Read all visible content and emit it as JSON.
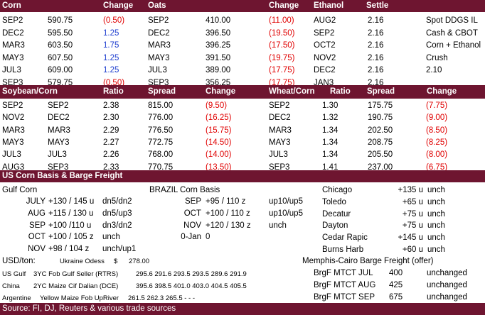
{
  "colors": {
    "header_bg": "#6e1530",
    "negative": "#e00000",
    "positive": "#1f3fcf"
  },
  "corn": {
    "headers": [
      "Corn",
      "Change",
      "Oats",
      "Change",
      "Ethanol",
      "Settle"
    ],
    "rows": [
      {
        "month": "SEP2",
        "price": "590.75",
        "change": "(0.50)",
        "oats_month": "SEP2",
        "oats_price": "410.00",
        "oats_change": "(11.00)",
        "eth_month": "AUG2",
        "eth_settle": "2.16",
        "note": "Spot DDGS IL"
      },
      {
        "month": "DEC2",
        "price": "595.50",
        "change": "1.25",
        "oats_month": "DEC2",
        "oats_price": "396.50",
        "oats_change": "(19.50)",
        "eth_month": "SEP2",
        "eth_settle": "2.16",
        "note": "Cash & CBOT"
      },
      {
        "month": "MAR3",
        "price": "603.50",
        "change": "1.75",
        "oats_month": "MAR3",
        "oats_price": "396.25",
        "oats_change": "(17.50)",
        "eth_month": "OCT2",
        "eth_settle": "2.16",
        "note": "Corn + Ethanol"
      },
      {
        "month": "MAY3",
        "price": "607.50",
        "change": "1.25",
        "oats_month": "MAY3",
        "oats_price": "391.50",
        "oats_change": "(19.75)",
        "eth_month": "NOV2",
        "eth_settle": "2.16",
        "note": "Crush"
      },
      {
        "month": "JUL3",
        "price": "609.00",
        "change": "1.25",
        "oats_month": "JUL3",
        "oats_price": "389.00",
        "oats_change": "(17.75)",
        "eth_month": "DEC2",
        "eth_settle": "2.16",
        "note": "2.10"
      },
      {
        "month": "SEP3",
        "price": "579.75",
        "change": "(0.50)",
        "oats_month": "SEP3",
        "oats_price": "356.25",
        "oats_change": "(17.75)",
        "eth_month": "JAN3",
        "eth_settle": "2.16",
        "note": ""
      }
    ]
  },
  "spreads": {
    "headers": [
      "Soybean/Corn",
      "Ratio",
      "Spread",
      "Change",
      "Wheat/Corn",
      "Ratio",
      "Spread",
      "Change"
    ],
    "rows": [
      {
        "soy": "SEP2",
        "corn": "SEP2",
        "ratio": "2.38",
        "spread": "815.00",
        "change": "(9.50)",
        "w_month": "SEP2",
        "w_ratio": "1.30",
        "w_spread": "175.75",
        "w_change": "(7.75)"
      },
      {
        "soy": "NOV2",
        "corn": "DEC2",
        "ratio": "2.30",
        "spread": "776.00",
        "change": "(16.25)",
        "w_month": "DEC2",
        "w_ratio": "1.32",
        "w_spread": "190.75",
        "w_change": "(9.00)"
      },
      {
        "soy": "MAR3",
        "corn": "MAR3",
        "ratio": "2.29",
        "spread": "776.50",
        "change": "(15.75)",
        "w_month": "MAR3",
        "w_ratio": "1.34",
        "w_spread": "202.50",
        "w_change": "(8.50)"
      },
      {
        "soy": "MAY3",
        "corn": "MAY3",
        "ratio": "2.27",
        "spread": "772.75",
        "change": "(14.50)",
        "w_month": "MAY3",
        "w_ratio": "1.34",
        "w_spread": "208.75",
        "w_change": "(8.25)"
      },
      {
        "soy": "JUL3",
        "corn": "JUL3",
        "ratio": "2.26",
        "spread": "768.00",
        "change": "(14.00)",
        "w_month": "JUL3",
        "w_ratio": "1.34",
        "w_spread": "205.50",
        "w_change": "(8.00)"
      },
      {
        "soy": "AUG3",
        "corn": "SEP3",
        "ratio": "2.33",
        "spread": "770.75",
        "change": "(13.50)",
        "w_month": "SEP3",
        "w_ratio": "1.41",
        "w_spread": "237.00",
        "w_change": "(6.75)"
      }
    ]
  },
  "basis": {
    "title": "US Corn Basis & Barge Freight",
    "gulf_title": "Gulf Corn",
    "gulf": [
      {
        "month": "JULY",
        "basis": "+130 / 145 u",
        "chg": "dn5/dn2"
      },
      {
        "month": "AUG",
        "basis": "+115 / 130 u",
        "chg": "dn5/up3"
      },
      {
        "month": "SEP",
        "basis": "+100 /110 u",
        "chg": "dn3/dn2"
      },
      {
        "month": "OCT",
        "basis": "+100 / 105 z",
        "chg": "unch"
      },
      {
        "month": "NOV",
        "basis": "+98 / 104 z",
        "chg": "unch/up1"
      }
    ],
    "brazil_title": "BRAZIL Corn Basis",
    "brazil": [
      {
        "month": "SEP",
        "basis": "+95 / 110 z",
        "chg": "up10/up5"
      },
      {
        "month": "OCT",
        "basis": "+100 / 110 z",
        "chg": "up10/up5"
      },
      {
        "month": "NOV",
        "basis": "+120 / 130 z",
        "chg": "unch"
      },
      {
        "month": "0-Jan",
        "basis": "0",
        "chg": ""
      }
    ],
    "interior": [
      {
        "city": "Chicago",
        "basis": "+135 u",
        "chg": "unch"
      },
      {
        "city": "Toledo",
        "basis": "+65 u",
        "chg": "unch"
      },
      {
        "city": "Decatur",
        "basis": "+75 u",
        "chg": "unch"
      },
      {
        "city": "Dayton",
        "basis": "+75 u",
        "chg": "unch"
      },
      {
        "city": "Cedar Rapic",
        "basis": "+145 u",
        "chg": "unch"
      },
      {
        "city": "Burns Harb",
        "basis": "+60 u",
        "chg": "unch"
      }
    ]
  },
  "usd": {
    "label": "USD/ton:",
    "ukraine_label": "Ukraine Odess",
    "ukraine_cur": "$",
    "ukraine_val": "278.00",
    "rows": [
      {
        "origin": "US Gulf",
        "desc": "3YC Fob Gulf Seller (RTRS)",
        "values": "295.6  291.6  293.5  293.5  289.6  291.9"
      },
      {
        "origin": "China",
        "desc": "2YC Maize Cif Dalian (DCE)",
        "values": "395.6  398.5  401.0  403.0  404.5  405.5"
      },
      {
        "origin": "Argentine",
        "desc": "Yellow Maize Fob UpRiver",
        "values": "261.5  262.3  265.5    -     -     -"
      }
    ]
  },
  "barge": {
    "title": "Memphis-Cairo Barge Freight (offer)",
    "rows": [
      {
        "label": "BrgF MTCT JUL",
        "value": "400",
        "chg": "unchanged"
      },
      {
        "label": "BrgF MTCT AUG",
        "value": "425",
        "chg": "unchanged"
      },
      {
        "label": "BrgF MTCT SEP",
        "value": "675",
        "chg": "unchanged"
      }
    ]
  },
  "source": "Source: FI, DJ, Reuters & various trade sources"
}
